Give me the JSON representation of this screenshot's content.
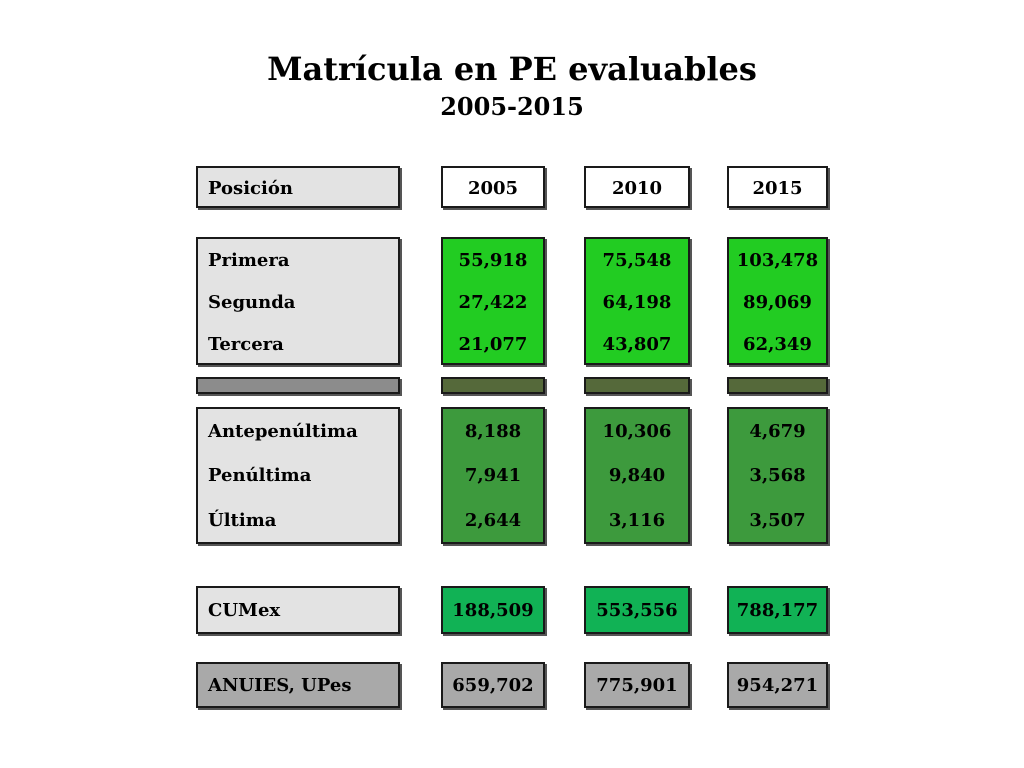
{
  "title": "Matrícula en PE evaluables",
  "subtitle": "2005-2015",
  "header": {
    "label": "Posición",
    "years": [
      "2005",
      "2010",
      "2015"
    ]
  },
  "top_group": {
    "labels": [
      "Primera",
      "Segunda",
      "Tercera"
    ],
    "values": {
      "2005": [
        "55,918",
        "27,422",
        "21,077"
      ],
      "2010": [
        "75,548",
        "64,198",
        "43,807"
      ],
      "2015": [
        "103,478",
        "89,069",
        "62,349"
      ]
    }
  },
  "bottom_group": {
    "labels": [
      "Antepenúltima",
      "Penúltima",
      "Última"
    ],
    "values": {
      "2005": [
        "8,188",
        "7,941",
        "2,644"
      ],
      "2010": [
        "10,306",
        "9,840",
        "3,116"
      ],
      "2015": [
        "4,679",
        "3,568",
        "3,507"
      ]
    }
  },
  "cumex": {
    "label": "CUMex",
    "values": [
      "188,509",
      "553,556",
      "788,177"
    ]
  },
  "anuies": {
    "label": "ANUIES, UPes",
    "values": [
      "659,702",
      "775,901",
      "954,271"
    ]
  },
  "colors": {
    "top_group": "#22cc22",
    "bottom_group": "#3d9a3d",
    "cumex": "#11b255",
    "anuies": "#a9a9a9",
    "label_fill": "#e3e3e3"
  }
}
